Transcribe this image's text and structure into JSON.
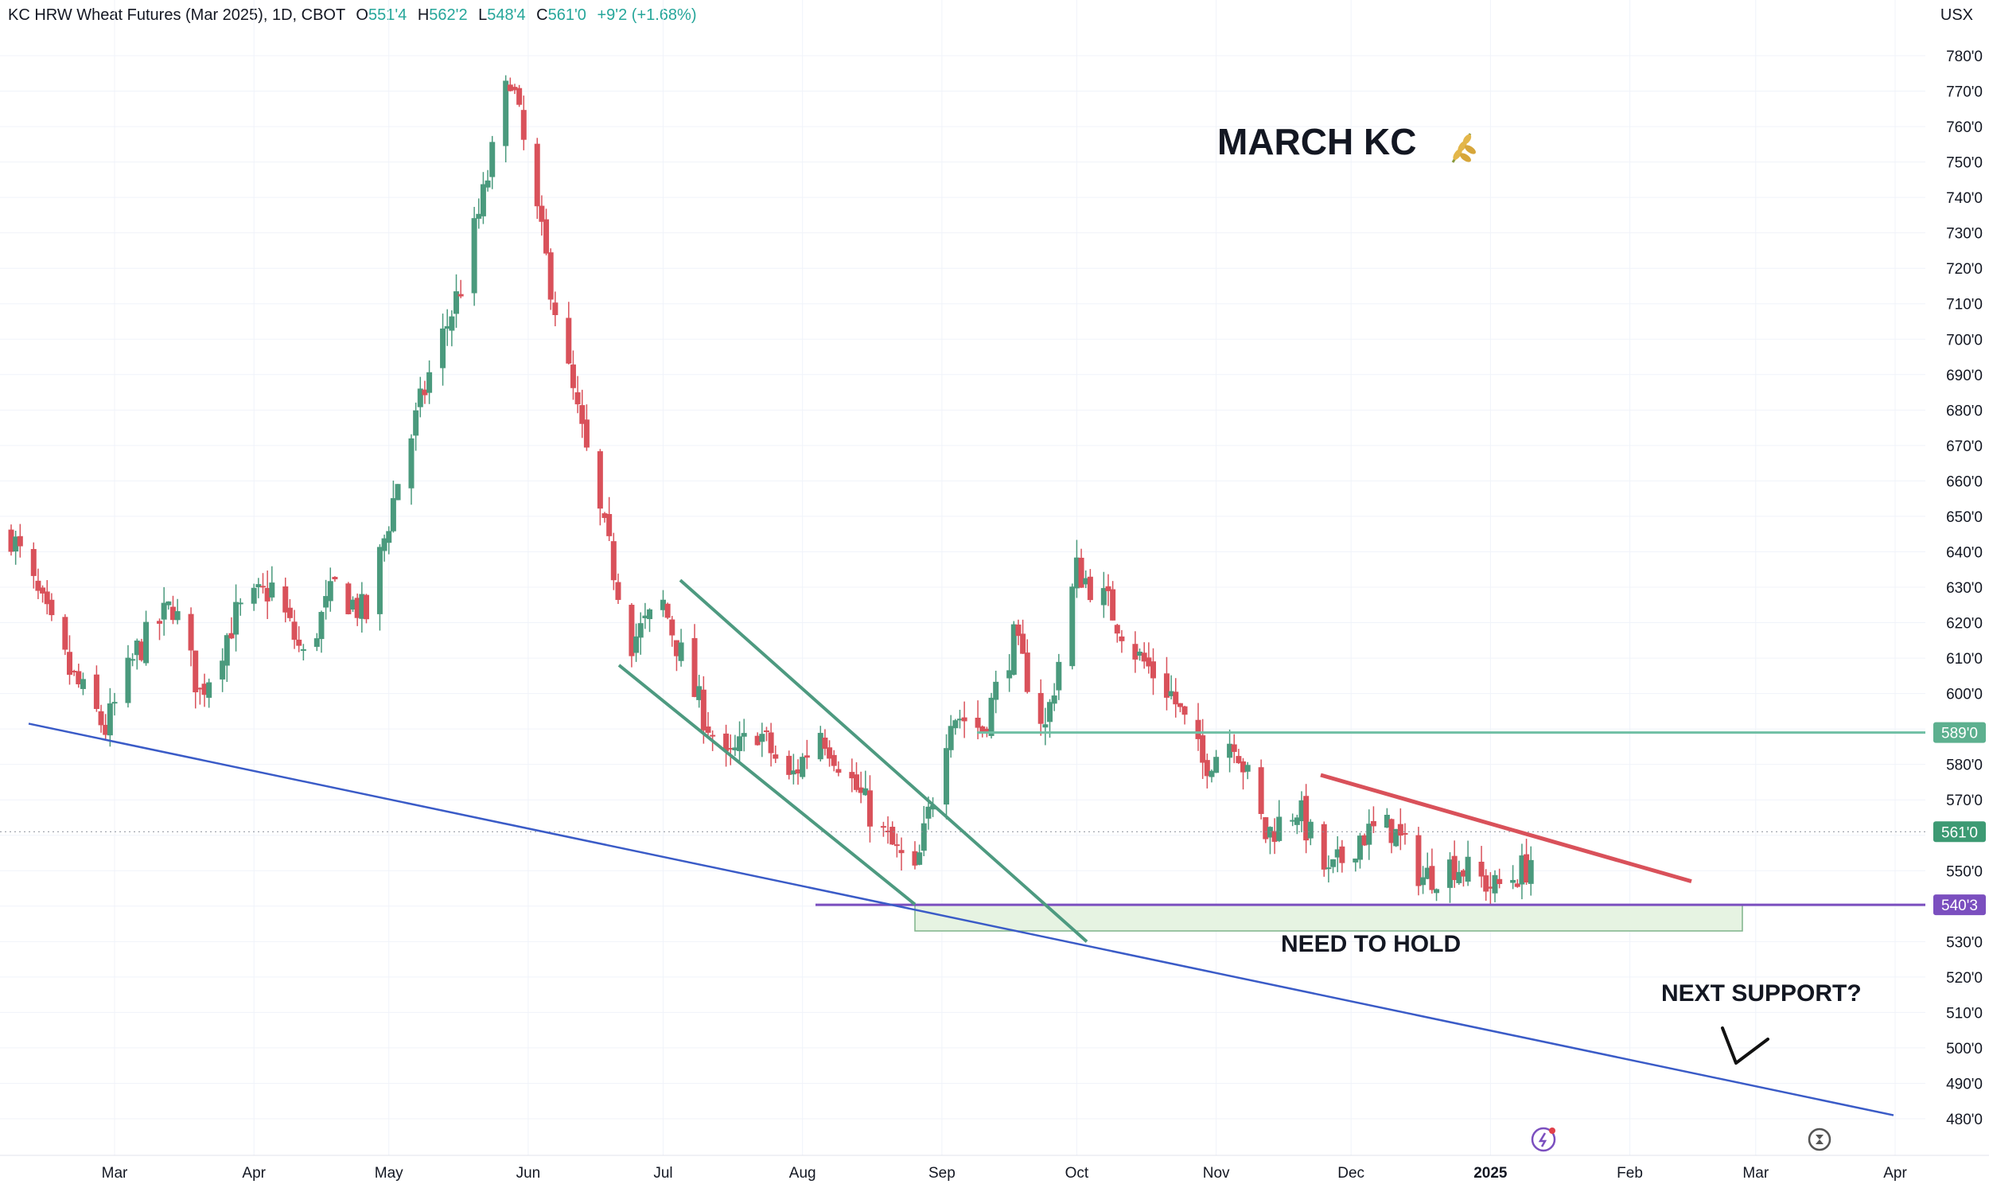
{
  "header": {
    "symbol": "KC HRW Wheat Futures (Mar 2025), 1D, CBOT",
    "open_label": "O",
    "open": "551'4",
    "high_label": "H",
    "high": "562'2",
    "low_label": "L",
    "low": "548'4",
    "close_label": "C",
    "close": "561'0",
    "change": "+9'2 (+1.68%)"
  },
  "unit": "USX",
  "colors": {
    "up": "#4a9a7d",
    "down": "#d9515a",
    "trend_green": "#4d9a80",
    "trend_red": "#d9515a",
    "trend_blue": "#3a5bc7",
    "support_purple": "#7b4fbf",
    "zone_fill": "#e6f3e2",
    "resistance": "#6fbfa4"
  },
  "chart_data": {
    "type": "candlestick",
    "title": "MARCH KC",
    "title_icon": "wheat-icon",
    "x_ticks": [
      "Mar",
      "Apr",
      "May",
      "Jun",
      "Jul",
      "Aug",
      "Sep",
      "Oct",
      "Nov",
      "Dec",
      "2025",
      "Feb",
      "Mar",
      "Apr"
    ],
    "y_ticks": [
      "780'0",
      "770'0",
      "760'0",
      "750'0",
      "740'0",
      "730'0",
      "720'0",
      "710'0",
      "700'0",
      "690'0",
      "680'0",
      "670'0",
      "660'0",
      "650'0",
      "640'0",
      "630'0",
      "620'0",
      "610'0",
      "600'0",
      "590'0",
      "580'0",
      "570'0",
      "560'0",
      "550'0",
      "540'0",
      "530'0",
      "520'0",
      "510'0",
      "500'0",
      "490'0",
      "480'0"
    ],
    "ylim": [
      477,
      790
    ],
    "xlim": [
      "2024-02-07",
      "2024-04-07"
    ],
    "price_labels": [
      {
        "name": "resistance",
        "value": 589,
        "text": "589'0"
      },
      {
        "name": "last-price",
        "value": 561,
        "text": "561'0"
      },
      {
        "name": "support",
        "value": 540.375,
        "text": "540'3"
      }
    ],
    "annotations": [
      {
        "name": "need-to-hold",
        "text": "NEED TO HOLD"
      },
      {
        "name": "next-support",
        "text": "NEXT SUPPORT?"
      }
    ],
    "closes": [
      [
        "2024-02-07",
        645
      ],
      [
        "2024-02-20",
        606
      ],
      [
        "2024-02-28",
        590
      ],
      [
        "2024-03-06",
        612
      ],
      [
        "2024-03-14",
        625
      ],
      [
        "2024-03-20",
        600
      ],
      [
        "2024-03-28",
        622
      ],
      [
        "2024-04-05",
        630
      ],
      [
        "2024-04-12",
        610
      ],
      [
        "2024-04-19",
        630
      ],
      [
        "2024-04-26",
        622
      ],
      [
        "2024-05-03",
        660
      ],
      [
        "2024-05-10",
        690
      ],
      [
        "2024-05-17",
        715
      ],
      [
        "2024-05-22",
        740
      ],
      [
        "2024-05-28",
        775
      ],
      [
        "2024-06-03",
        735
      ],
      [
        "2024-06-10",
        690
      ],
      [
        "2024-06-17",
        650
      ],
      [
        "2024-06-24",
        615
      ],
      [
        "2024-07-01",
        625
      ],
      [
        "2024-07-08",
        600
      ],
      [
        "2024-07-15",
        580
      ],
      [
        "2024-07-22",
        590
      ],
      [
        "2024-07-29",
        575
      ],
      [
        "2024-08-05",
        590
      ],
      [
        "2024-08-12",
        575
      ],
      [
        "2024-08-19",
        560
      ],
      [
        "2024-08-26",
        548
      ],
      [
        "2024-09-03",
        595
      ],
      [
        "2024-09-10",
        590
      ],
      [
        "2024-09-17",
        615
      ],
      [
        "2024-09-24",
        590
      ],
      [
        "2024-10-01",
        635
      ],
      [
        "2024-10-08",
        625
      ],
      [
        "2024-10-15",
        610
      ],
      [
        "2024-10-22",
        600
      ],
      [
        "2024-10-29",
        580
      ],
      [
        "2024-11-05",
        588
      ],
      [
        "2024-11-12",
        560
      ],
      [
        "2024-11-19",
        568
      ],
      [
        "2024-11-26",
        548
      ],
      [
        "2024-12-03",
        560
      ],
      [
        "2024-12-10",
        562
      ],
      [
        "2024-12-17",
        548
      ],
      [
        "2024-12-24",
        552
      ],
      [
        "2025-01-02",
        545
      ],
      [
        "2025-01-09",
        551
      ],
      [
        "2025-01-13",
        561
      ]
    ]
  }
}
